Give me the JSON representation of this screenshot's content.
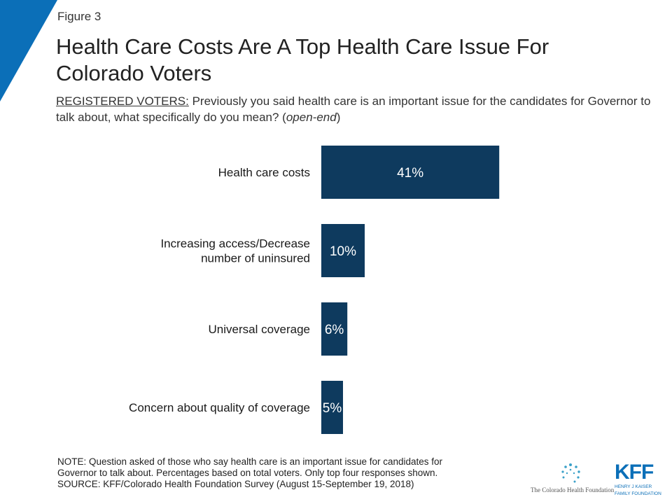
{
  "figure_label": "Figure 3",
  "title": "Health Care Costs Are A Top Health Care Issue For Colorado Voters",
  "subtitle": {
    "lead": "REGISTERED VOTERS:",
    "text": " Previously you said health care is an important issue for the candidates for Governor to talk about, what specifically do you mean? (",
    "italic": "open-end",
    "tail": ")"
  },
  "chart_data": {
    "type": "bar",
    "orientation": "horizontal",
    "categories": [
      "Health care costs",
      "Increasing access/Decrease number of uninsured",
      "Universal coverage",
      "Concern about quality of coverage"
    ],
    "category_lines": [
      [
        "Health care costs"
      ],
      [
        "Increasing access/Decrease",
        "number of uninsured"
      ],
      [
        "Universal coverage"
      ],
      [
        "Concern about quality of coverage"
      ]
    ],
    "values": [
      41,
      10,
      6,
      5
    ],
    "value_labels": [
      "41%",
      "10%",
      "6%",
      "5%"
    ],
    "unit": "%",
    "xlim": [
      0,
      100
    ],
    "grid": false,
    "legend": "none",
    "bar_color": "#0e3a5e",
    "label_color": "#ffffff"
  },
  "note": {
    "line1": "NOTE: Question asked of those who say health care is an important issue for candidates for",
    "line2": "Governor to talk about. Percentages based on total voters. Only top four responses shown.",
    "source": "SOURCE: KFF/Colorado Health Foundation Survey (August 15-September 19, 2018)"
  },
  "logos": {
    "chf": "The Colorado Health Foundation",
    "kff_word": "KFF",
    "kff_sub_1": "HENRY J KAISER",
    "kff_sub_2": "FAMILY FOUNDATION"
  },
  "colors": {
    "accent": "#0b6fb8",
    "bar": "#0e3a5e"
  }
}
